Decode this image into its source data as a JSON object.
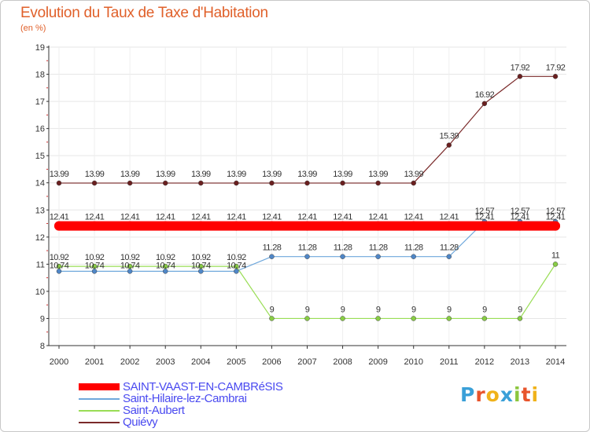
{
  "header": {
    "title": "Evolution du Taux de Taxe d'Habitation",
    "subtitle": "(en %)"
  },
  "chart_data": {
    "type": "line",
    "title": "Evolution du Taux de Taxe d'Habitation",
    "ylabel": "(en %)",
    "xlabel": "",
    "ylim": [
      8,
      19
    ],
    "yticks": [
      8,
      9,
      10,
      11,
      12,
      13,
      14,
      15,
      16,
      17,
      18,
      19
    ],
    "x": [
      "2000",
      "2001",
      "2002",
      "2003",
      "2004",
      "2005",
      "2006",
      "2007",
      "2008",
      "2009",
      "2010",
      "2011",
      "2012",
      "2013",
      "2014"
    ],
    "legend_position": "bottom-left",
    "series": [
      {
        "name": "SAINT-VAAST-EN-CAMBRéSIS",
        "color": "#ff0000",
        "values": [
          12.41,
          12.41,
          12.41,
          12.41,
          12.41,
          12.41,
          12.41,
          12.41,
          12.41,
          12.41,
          12.41,
          12.41,
          12.41,
          12.41,
          12.41
        ],
        "labels": [
          "12.41",
          "12.41",
          "12.41",
          "12.41",
          "12.41",
          "12.41",
          "12.41",
          "12.41",
          "12.41",
          "12.41",
          "12.41",
          "12.41",
          "12.41",
          "12.41",
          "12.41"
        ]
      },
      {
        "name": "Saint-Hilaire-lez-Cambrai",
        "color": "#6fa8dc",
        "values": [
          10.74,
          10.74,
          10.74,
          10.74,
          10.74,
          10.74,
          11.28,
          11.28,
          11.28,
          11.28,
          11.28,
          11.28,
          12.57,
          12.57,
          12.57
        ],
        "labels": [
          "10.74",
          "10.74",
          "10.74",
          "10.74",
          "10.74",
          "10.74",
          "11.28",
          "11.28",
          "11.28",
          "11.28",
          "11.28",
          "11.28",
          "12.57",
          "12.57",
          "12.57"
        ]
      },
      {
        "name": "Saint-Aubert",
        "color": "#99dd55",
        "values": [
          10.92,
          10.92,
          10.92,
          10.92,
          10.92,
          10.92,
          9,
          9,
          9,
          9,
          9,
          9,
          9,
          9,
          11
        ],
        "labels": [
          "10.92",
          "10.92",
          "10.92",
          "10.92",
          "10.92",
          "10.92",
          "9",
          "9",
          "9",
          "9",
          "9",
          "9",
          "9",
          "9",
          "11"
        ]
      },
      {
        "name": "Quiévy",
        "color": "#7a2a2a",
        "values": [
          13.99,
          13.99,
          13.99,
          13.99,
          13.99,
          13.99,
          13.99,
          13.99,
          13.99,
          13.99,
          13.99,
          15.39,
          16.92,
          17.92,
          17.92
        ],
        "labels": [
          "13.99",
          "13.99",
          "13.99",
          "13.99",
          "13.99",
          "13.99",
          "13.99",
          "13.99",
          "13.99",
          "13.99",
          "13.99",
          "15.39",
          "16.92",
          "17.92",
          "17.92"
        ]
      }
    ]
  },
  "logo": {
    "letters": [
      "P",
      "r",
      "o",
      "x",
      "i",
      "t",
      "i"
    ],
    "colors": [
      "#3aa0d8",
      "#e8542c",
      "#f0b21a",
      "#3aa0d8",
      "#8cc63e",
      "#e8542c",
      "#f0b21a"
    ]
  }
}
